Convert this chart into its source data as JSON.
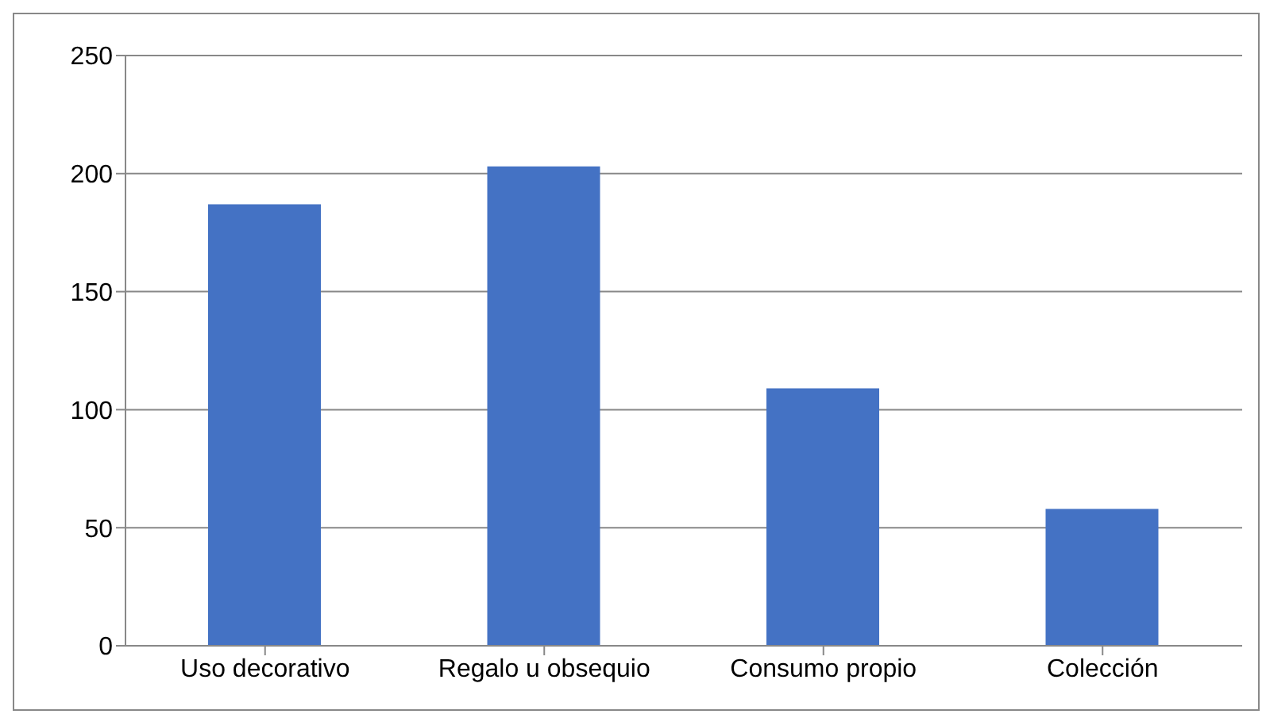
{
  "chart_data": {
    "type": "bar",
    "categories": [
      "Uso decorativo",
      "Regalo u obsequio",
      "Consumo propio",
      "Colección"
    ],
    "values": [
      187,
      203,
      109,
      58
    ],
    "color": "#4472c4",
    "ylim": [
      0,
      250
    ],
    "yticks": [
      0,
      50,
      100,
      150,
      200,
      250
    ],
    "grid": "y",
    "legend": false
  }
}
